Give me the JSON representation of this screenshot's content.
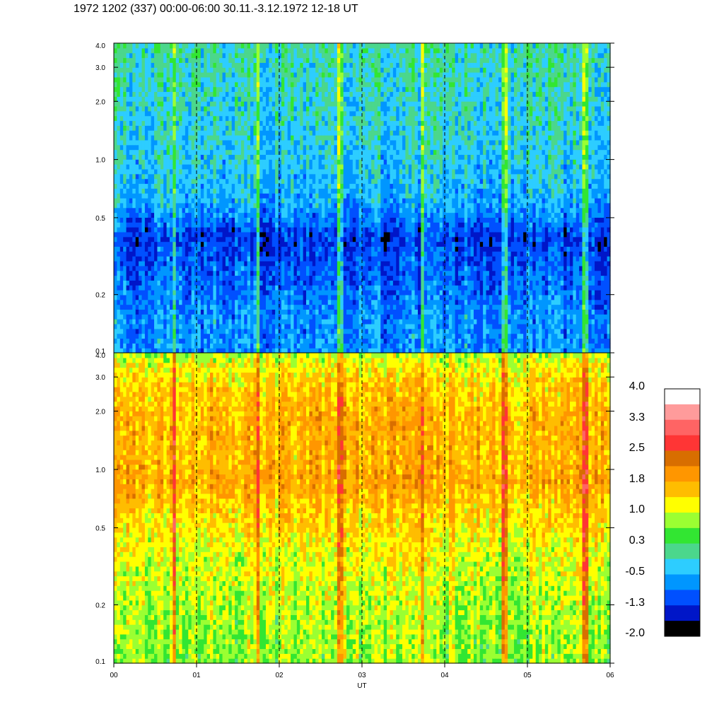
{
  "title": "1972 1202 (337) 00:00-06:00 30.11.-3.12.1972  12-18 UT",
  "chart_data": {
    "type": "heatmap",
    "xlabel": "UT",
    "x_ticks": [
      "00",
      "01",
      "02",
      "03",
      "04",
      "05",
      "06"
    ],
    "x_range": [
      0,
      6
    ],
    "hour_markers": [
      1,
      2,
      3,
      4,
      5
    ],
    "panels": [
      {
        "name": "upper",
        "y_scale": "log",
        "y_range": [
          0.1,
          4.0
        ],
        "y_ticks": [
          {
            "v": 4.0,
            "t": "4.0"
          },
          {
            "v": 3.0,
            "t": "3.0"
          },
          {
            "v": 2.0,
            "t": "2.0"
          },
          {
            "v": 1.0,
            "t": "1.0"
          },
          {
            "v": 0.5,
            "t": "0.5"
          },
          {
            "v": 0.2,
            "t": "0.2"
          },
          {
            "v": 0.1,
            "t": "0.1"
          }
        ],
        "level_profile": [
          [
            0.1,
            0.05
          ],
          [
            0.15,
            0.05
          ],
          [
            0.25,
            -0.2
          ],
          [
            0.4,
            -0.45
          ],
          [
            0.6,
            0.25
          ],
          [
            1.0,
            0.45
          ],
          [
            2.0,
            0.6
          ],
          [
            4.0,
            0.75
          ]
        ],
        "base_level": -0.75,
        "level_spread": 0.7,
        "bright_lines_hours": [
          0.74,
          1.74,
          2.74,
          3.72,
          4.72,
          5.7
        ]
      },
      {
        "name": "lower",
        "y_scale": "log",
        "y_range": [
          0.1,
          4.0
        ],
        "y_ticks": [
          {
            "v": 4.0,
            "t": "4.0"
          },
          {
            "v": 3.0,
            "t": "3.0"
          },
          {
            "v": 2.0,
            "t": "2.0"
          },
          {
            "v": 1.0,
            "t": "1.0"
          },
          {
            "v": 0.5,
            "t": "0.5"
          },
          {
            "v": 0.2,
            "t": "0.2"
          },
          {
            "v": 0.1,
            "t": "0.1"
          }
        ],
        "level_profile": [
          [
            0.1,
            -0.1
          ],
          [
            0.2,
            0.05
          ],
          [
            0.35,
            0.25
          ],
          [
            0.6,
            0.6
          ],
          [
            0.9,
            0.95
          ],
          [
            1.1,
            0.8
          ],
          [
            2.0,
            0.8
          ],
          [
            3.0,
            0.55
          ],
          [
            4.0,
            0.1
          ]
        ],
        "base_level": 0.85,
        "level_spread": 0.75,
        "bright_lines_hours": [
          0.74,
          1.74,
          2.74,
          3.72,
          4.72,
          5.7
        ]
      }
    ],
    "colorbar": {
      "levels": [
        "4.0",
        "3.3",
        "2.5",
        "1.8",
        "1.0",
        "0.3",
        "-0.5",
        "-1.3",
        "-2.0"
      ],
      "colors": [
        "#ffffff",
        "#ff9b9b",
        "#ff6464",
        "#ff3535",
        "#d86e00",
        "#ff9600",
        "#ffbd00",
        "#ffff00",
        "#9bff32",
        "#32e632",
        "#4bd78c",
        "#2dcdff",
        "#0096ff",
        "#0050ff",
        "#0016c8",
        "#000000"
      ]
    }
  }
}
